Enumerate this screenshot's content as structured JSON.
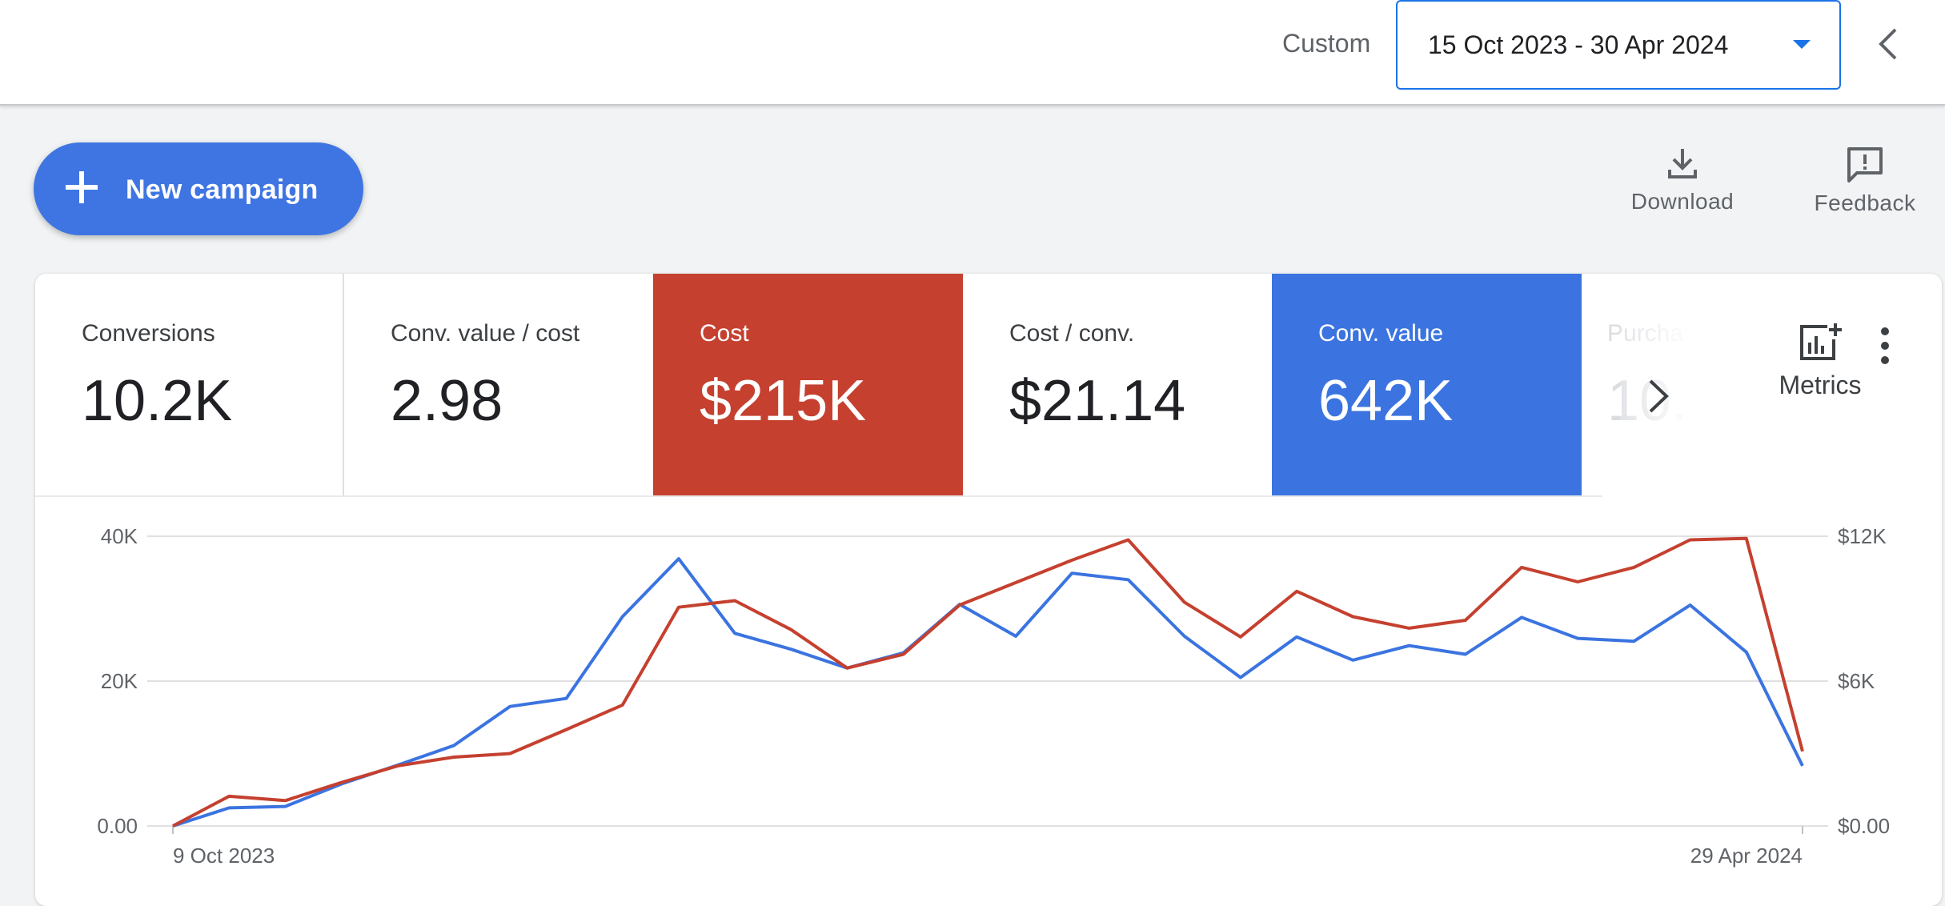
{
  "header": {
    "range_label": "Custom",
    "date_range": "15 Oct 2023 - 30 Apr 2024",
    "collapse_icon": "chevron-left-icon"
  },
  "toolbar": {
    "new_campaign_label": "New campaign",
    "download_label": "Download",
    "feedback_label": "Feedback"
  },
  "scorecards": [
    {
      "label": "Conversions",
      "value": "10.2K",
      "style": "plain"
    },
    {
      "label": "Conv. value / cost",
      "value": "2.98",
      "style": "plain"
    },
    {
      "label": "Cost",
      "value": "$215K",
      "style": "selected",
      "color": "#c5402f"
    },
    {
      "label": "Cost / conv.",
      "value": "$21.14",
      "style": "plain"
    },
    {
      "label": "Conv. value",
      "value": "642K",
      "style": "selected",
      "color": "#3b74e0"
    },
    {
      "label": "Purcha",
      "value": "10.",
      "style": "faded"
    }
  ],
  "metrics_label": "Metrics",
  "colors": {
    "blue": "#3b74e0",
    "red": "#c5402f"
  },
  "chart_data": {
    "type": "line",
    "x_labels": [
      "9 Oct 2023",
      "29 Apr 2024"
    ],
    "y_left": {
      "ticks": [
        "0.00",
        "20K",
        "40K"
      ],
      "range": [
        0,
        40000
      ]
    },
    "y_right": {
      "ticks": [
        "$0.00",
        "$6K",
        "$12K"
      ],
      "range": [
        0,
        12000
      ]
    },
    "series": [
      {
        "color": "#3b74e0",
        "axis": "left",
        "values": [
          0,
          2500,
          2700,
          5800,
          8400,
          11100,
          16500,
          17600,
          28900,
          36900,
          26600,
          24400,
          21800,
          23900,
          30600,
          26200,
          34900,
          34000,
          26200,
          20500,
          26100,
          22900,
          24900,
          23700,
          28800,
          25900,
          25500,
          30500,
          24000,
          8300
        ]
      },
      {
        "color": "#c5402f",
        "axis": "right",
        "values": [
          0,
          1230,
          1050,
          1800,
          2490,
          2850,
          3000,
          3990,
          5010,
          9060,
          9330,
          8130,
          6540,
          7110,
          9150,
          10080,
          11010,
          11850,
          9270,
          7830,
          9720,
          8670,
          8190,
          8520,
          10710,
          10110,
          10710,
          11850,
          11910,
          3090
        ]
      }
    ]
  }
}
